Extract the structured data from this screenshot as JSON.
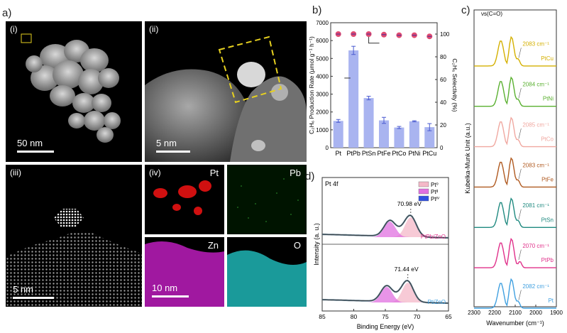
{
  "panels": {
    "a": {
      "letter": "a)",
      "images": [
        {
          "sub": "(i)",
          "scale": "50 nm"
        },
        {
          "sub": "(ii)",
          "scale": "5 nm"
        },
        {
          "sub": "(iii)",
          "scale": "5 nm"
        },
        {
          "sub": "(iv)",
          "scale": "10 nm"
        }
      ],
      "eds": [
        "Pt",
        "Pb",
        "Zn",
        "O"
      ],
      "colors": {
        "pt": "#e01010",
        "pb": "#1a8a1a",
        "zn": "#c020c0",
        "o": "#20b0b0",
        "box": "#e6d020"
      }
    },
    "b": {
      "letter": "b)"
    },
    "c": {
      "letter": "c)"
    },
    "d": {
      "letter": "d)"
    }
  },
  "chart_data": [
    {
      "type": "bar",
      "panel": "b",
      "categories": [
        "Pt",
        "PtPb",
        "PtSn",
        "PtFe",
        "PtCo",
        "PtNi",
        "PtCu"
      ],
      "series": [
        {
          "values": [
            1500,
            5450,
            2780,
            1530,
            1130,
            1480,
            1150
          ],
          "errors": [
            80,
            230,
            100,
            170,
            60,
            30,
            200
          ],
          "color": "#a9b4f0"
        },
        {
          "values": [
            100,
            100,
            100,
            99.5,
            99,
            99,
            98
          ],
          "color": "#e04a70",
          "axis": "right",
          "kind": "scatter"
        }
      ],
      "ylabel_left": "C₂H₆ Production Rate (μmol g⁻¹ h⁻¹)",
      "ylabel_right": "C₂H₆ Selectivity (%)",
      "ylim_left": [
        0,
        7000
      ],
      "ylim_right": [
        0,
        110
      ],
      "yticks_left": [
        "0",
        "1000",
        "2000",
        "3000",
        "4000",
        "5000",
        "6000",
        "7000"
      ],
      "yticks_right": [
        "0",
        "20",
        "40",
        "60",
        "80",
        "100"
      ]
    },
    {
      "type": "line",
      "panel": "c",
      "xlabel": "Wavenumber (cm⁻¹)",
      "ylabel": "Kubelka-Munk Unit (a.u.)",
      "xlim": [
        2300,
        1900
      ],
      "xticks": [
        "2300",
        "2200",
        "2100",
        "2000",
        "1900"
      ],
      "annotation": "νs(C=O)",
      "series": [
        {
          "name": "PtCu",
          "peak": "2083 cm⁻¹",
          "color": "#d4b000"
        },
        {
          "name": "PtNi",
          "peak": "2084 cm⁻¹",
          "color": "#5ab030"
        },
        {
          "name": "PtCo",
          "peak": "2085 cm⁻¹",
          "color": "#f0a8a0"
        },
        {
          "name": "PtFe",
          "peak": "2083 cm⁻¹",
          "color": "#b05a20"
        },
        {
          "name": "PtSn",
          "peak": "2081 cm⁻¹",
          "color": "#208a80"
        },
        {
          "name": "PtPb",
          "peak": "2070 cm⁻¹",
          "color": "#e0308a"
        },
        {
          "name": "Pt",
          "peak": "2082 cm⁻¹",
          "color": "#40a0e0"
        }
      ]
    },
    {
      "type": "line",
      "panel": "d",
      "title": "Pt 4f",
      "xlabel": "Binding Energy (eV)",
      "ylabel": "Intensity (a. u.)",
      "xlim": [
        85,
        65
      ],
      "xticks": [
        "85",
        "80",
        "75",
        "70",
        "65"
      ],
      "legend": [
        "Pt⁰",
        "Ptᴵᴵ",
        "Ptᴵⱽ"
      ],
      "legend_colors": [
        "#f4b8c8",
        "#e070e0",
        "#3050e0"
      ],
      "series": [
        {
          "name": "PtPb/ZnO",
          "peak": "70.98 eV",
          "color": "#e0308a"
        },
        {
          "name": "Pt/ZnO",
          "peak": "71.44 eV",
          "color": "#40a0e0"
        }
      ]
    }
  ]
}
